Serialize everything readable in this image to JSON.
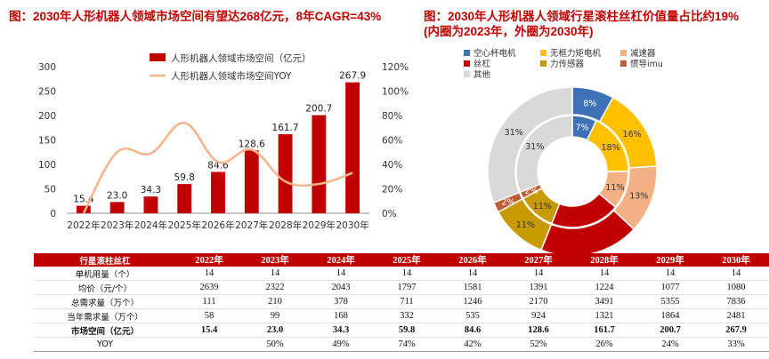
{
  "titles": {
    "left": "图：2030年人形机器人领域市场空间有望达268亿元，8年CAGR=43%",
    "right_line1": "图：2030年人形机器人领域行星滚柱丝杠价值量占比约19%",
    "right_line2": "(内圈为2023年，外圈为2030年)"
  },
  "colors": {
    "bar": "#c00000",
    "line": "#f5b48a",
    "title": "#c00000",
    "header_bg": "#c00000"
  },
  "chart_data": [
    {
      "type": "bar",
      "categories": [
        "2022年",
        "2023年",
        "2024年",
        "2025年",
        "2026年",
        "2027年",
        "2028年",
        "2029年",
        "2030年"
      ],
      "series": [
        {
          "name": "人形机器人领域市场空间（亿元）",
          "type": "bar",
          "axis": "left",
          "values": [
            15.4,
            23.0,
            34.3,
            59.8,
            84.6,
            128.6,
            161.7,
            200.7,
            267.9
          ],
          "labels": [
            "15.4",
            "23.0",
            "34.3",
            "59.8",
            "84.6",
            "128.6",
            "161.7",
            "200.7",
            "267.9"
          ]
        },
        {
          "name": "人形机器人领域市场空间YOY",
          "type": "line",
          "axis": "right",
          "values": [
            null,
            50,
            49,
            74,
            42,
            52,
            26,
            24,
            33
          ]
        }
      ],
      "ylim_left": [
        0,
        300
      ],
      "yticks_left": [
        "0",
        "50",
        "100",
        "150",
        "200",
        "250",
        "300"
      ],
      "ylim_right": [
        0,
        120
      ],
      "yticks_right": [
        "0%",
        "20%",
        "40%",
        "60%",
        "80%",
        "100%",
        "120%"
      ],
      "legend_position": "top"
    },
    {
      "type": "pie",
      "style": "donut",
      "legend": [
        {
          "name": "空心杯电机",
          "color": "#3f71b6"
        },
        {
          "name": "无框力矩电机",
          "color": "#ffc000"
        },
        {
          "name": "减速器",
          "color": "#f4b183"
        },
        {
          "name": "丝杠",
          "color": "#c00000"
        },
        {
          "name": "力传感器",
          "color": "#c79a00"
        },
        {
          "name": "惯导imu",
          "color": "#bf5f3a"
        },
        {
          "name": "其他",
          "color": "#d9d9d9"
        }
      ],
      "inner_2023": [
        7,
        18,
        11,
        null,
        11,
        2,
        31
      ],
      "inner_2023_labels": [
        "7%",
        "18%",
        "11%",
        "",
        "11%",
        "2%",
        "31%"
      ],
      "outer_2030": [
        8,
        16,
        13,
        null,
        11,
        2,
        31
      ],
      "outer_2030_labels": [
        "8%",
        "16%",
        "13%",
        "",
        "11%",
        "2%",
        "31%"
      ]
    }
  ],
  "table": {
    "header": [
      "行星滚柱丝杠",
      "2022年",
      "2023年",
      "2024年",
      "2025年",
      "2026年",
      "2027年",
      "2028年",
      "2029年",
      "2030年"
    ],
    "rows": [
      {
        "label": "单机用量（个）",
        "bold": false,
        "values": [
          "14",
          "14",
          "14",
          "14",
          "14",
          "14",
          "14",
          "14",
          "14"
        ]
      },
      {
        "label": "均价（元/个）",
        "bold": false,
        "values": [
          "2639",
          "2322",
          "2043",
          "1797",
          "1581",
          "1391",
          "1224",
          "1077",
          "1080"
        ]
      },
      {
        "label": "总需求量（万个）",
        "bold": false,
        "values": [
          "111",
          "210",
          "378",
          "711",
          "1246",
          "2170",
          "3491",
          "5355",
          "7836"
        ]
      },
      {
        "label": "当年需求量（万个）",
        "bold": false,
        "values": [
          "58",
          "99",
          "168",
          "332",
          "535",
          "924",
          "1321",
          "1864",
          "2481"
        ]
      },
      {
        "label": "市场空间（亿元）",
        "bold": true,
        "values": [
          "15.4",
          "23.0",
          "34.3",
          "59.8",
          "84.6",
          "128.6",
          "161.7",
          "200.7",
          "267.9"
        ]
      },
      {
        "label": "YOY",
        "bold": false,
        "values": [
          "",
          "50%",
          "49%",
          "74%",
          "42%",
          "52%",
          "26%",
          "24%",
          "33%"
        ]
      }
    ]
  }
}
